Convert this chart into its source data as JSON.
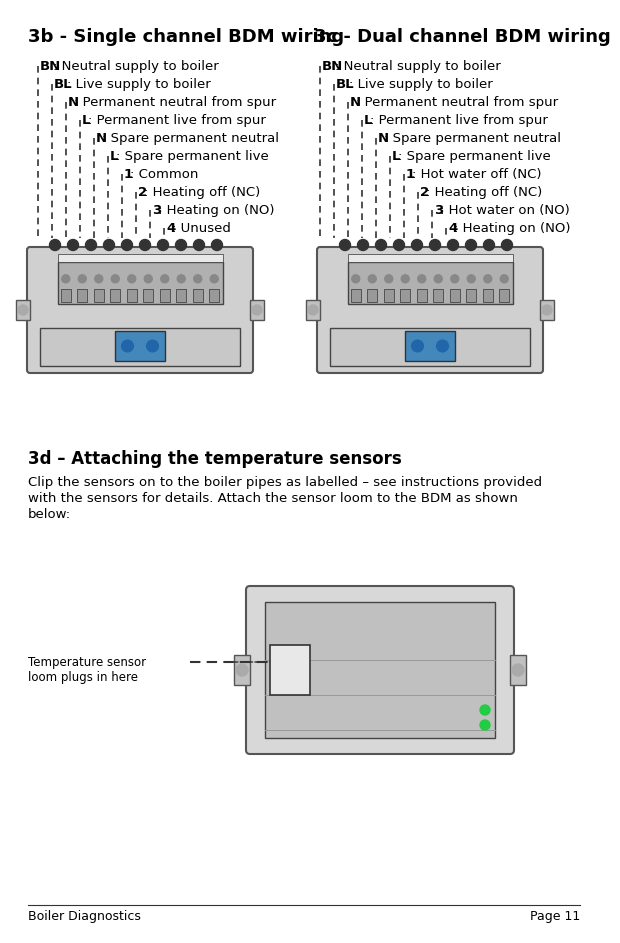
{
  "title_left": "3b - Single channel BDM wiring",
  "title_right": "3c - Dual channel BDM wiring",
  "left_labels": [
    [
      "BN",
      ": Neutral supply to boiler"
    ],
    [
      "BL",
      ": Live supply to boiler"
    ],
    [
      "N",
      ": Permanent neutral from spur"
    ],
    [
      "L",
      ": Permanent live from spur"
    ],
    [
      "N",
      ": Spare permanent neutral"
    ],
    [
      "L",
      ": Spare permanent live"
    ],
    [
      "1",
      ": Common"
    ],
    [
      "2",
      ": Heating off (NC)"
    ],
    [
      "3",
      ": Heating on (NO)"
    ],
    [
      "4",
      ": Unused"
    ]
  ],
  "right_labels": [
    [
      "BN",
      ": Neutral supply to boiler"
    ],
    [
      "BL",
      ": Live supply to boiler"
    ],
    [
      "N",
      ": Permanent neutral from spur"
    ],
    [
      "L",
      ": Permanent live from spur"
    ],
    [
      "N",
      ": Spare permanent neutral"
    ],
    [
      "L",
      ": Spare permanent live"
    ],
    [
      "1",
      ": Hot water off (NC)"
    ],
    [
      "2",
      ": Heating off (NC)"
    ],
    [
      "3",
      ": Hot water on (NO)"
    ],
    [
      "4",
      ": Heating on (NO)"
    ]
  ],
  "section3d_title": "3d – Attaching the temperature sensors",
  "section3d_text": "Clip the sensors on to the boiler pipes as labelled – see instructions provided\nwith the sensors for details. Attach the sensor loom to the BDM as shown\nbelow:",
  "arrow_label": "Temperature sensor\nloom plugs in here",
  "footer_left": "Boiler Diagnostics",
  "footer_right": "Page 11",
  "bg_color": "#ffffff",
  "text_color": "#000000",
  "title_fontsize": 13,
  "label_fontsize": 9.5,
  "section_title_fontsize": 12,
  "body_fontsize": 9.5,
  "footer_fontsize": 9
}
